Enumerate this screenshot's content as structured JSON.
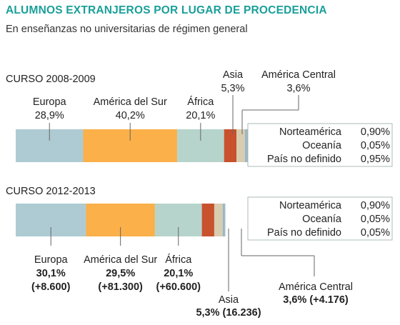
{
  "header": {
    "title": "ALUMNOS EXTRANJEROS POR LUGAR DE PROCEDENCIA",
    "subtitle": "En enseñanzas no universitarias de régimen general"
  },
  "chart_data": [
    {
      "type": "bar",
      "orientation": "horizontal-stacked",
      "title": "CURSO 2008-2009",
      "xlim": [
        0,
        100
      ],
      "segments": [
        {
          "name": "Europa",
          "value": 28.9,
          "label": "28,9%",
          "color": "#aecbd3"
        },
        {
          "name": "América del Sur",
          "value": 40.2,
          "label": "40,2%",
          "color": "#fbb04a"
        },
        {
          "name": "África",
          "value": 20.1,
          "label": "20,1%",
          "color": "#b6d4cb"
        },
        {
          "name": "Asia",
          "value": 5.3,
          "label": "5,3%",
          "color": "#c8512e"
        },
        {
          "name": "América Central",
          "value": 3.6,
          "label": "3,6%",
          "color": "#d9cdb0"
        },
        {
          "name": "Norteamérica",
          "value": 0.9,
          "label": "0,90%",
          "color": "#9ab7c3"
        },
        {
          "name": "Oceanía",
          "value": 0.05,
          "label": "0,05%",
          "color": "#9ab7c3"
        },
        {
          "name": "País no definido",
          "value": 0.95,
          "label": "0,95%",
          "color": "#9ab7c3"
        }
      ],
      "grid": false
    },
    {
      "type": "bar",
      "orientation": "horizontal-stacked",
      "title": "CURSO 2012-2013",
      "xlim": [
        0,
        100
      ],
      "segments": [
        {
          "name": "Europa",
          "value": 30.1,
          "label": "30,1%",
          "change": "(+8.600)",
          "color": "#aecbd3"
        },
        {
          "name": "América del Sur",
          "value": 29.5,
          "label": "29,5%",
          "change": "(+81.300)",
          "color": "#fbb04a"
        },
        {
          "name": "África",
          "value": 20.1,
          "label": "20,1%",
          "change": "(+60.600)",
          "color": "#b6d4cb"
        },
        {
          "name": "Asia",
          "value": 5.3,
          "label": "5,3% (16.236)",
          "color": "#c8512e"
        },
        {
          "name": "América Central",
          "value": 3.6,
          "label": "3,6% (+4.176)",
          "color": "#d9cdb0"
        },
        {
          "name": "Norteamérica",
          "value": 0.9,
          "label": "0,90%",
          "color": "#9ab7c3"
        },
        {
          "name": "Oceanía",
          "value": 0.05,
          "label": "0,05%",
          "color": "#9ab7c3"
        },
        {
          "name": "País no definido",
          "value": 0.05,
          "label": "0,05%",
          "color": "#9ab7c3"
        }
      ],
      "grid": false
    }
  ]
}
